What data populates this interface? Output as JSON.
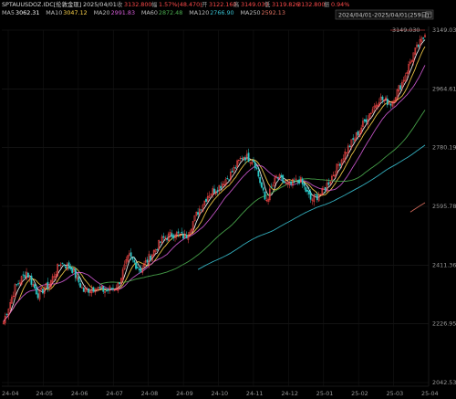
{
  "header": {
    "symbol": "SPTAUUSDOZ.IDC[伦敦金现]",
    "date": "2025/04/01",
    "close_label": "收",
    "close": "3132.800",
    "change_label": "幅",
    "change": "1.57%(48.470)",
    "open_label": "开",
    "open": "3122.160",
    "high_label": "高",
    "high": "3149.030",
    "low_label": "低",
    "low": "3119.826",
    "last": "3132.800",
    "amp_label": "振",
    "amp": "0.94%",
    "range": "2024/04/01-2025/04/01(259日)",
    "range_icon": "calendar-icon"
  },
  "ma_legend": [
    {
      "label": "MA5",
      "value": "3062.31",
      "color": "#ffffff"
    },
    {
      "label": "MA10",
      "value": "3047.12",
      "color": "#ffd54a"
    },
    {
      "label": "MA20",
      "value": "2991.83",
      "color": "#d35bd6"
    },
    {
      "label": "MA60",
      "value": "2872.48",
      "color": "#4caf50"
    },
    {
      "label": "MA120",
      "value": "2766.90",
      "color": "#39c1d1"
    },
    {
      "label": "MA250",
      "value": "2592.13",
      "color": "#e07060"
    }
  ],
  "chart_data": {
    "type": "candlestick",
    "y_ticks": [
      "3149.030",
      "2964.614",
      "2780.198",
      "2595.782",
      "2411.366",
      "2226.950",
      "2042.534"
    ],
    "ylim": [
      2042.534,
      3149.03
    ],
    "x_ticks": [
      "24-04",
      "24-05",
      "24-06",
      "24-07",
      "24-08",
      "24-09",
      "24-10",
      "24-11",
      "24-12",
      "25-01",
      "25-02",
      "25-03",
      "25-04"
    ],
    "high_marker": "3149.030",
    "up_color": "#ff4a4a",
    "down_color": "#29c7c7",
    "anchors": [
      [
        "24-04",
        2235
      ],
      [
        "24-04",
        2340
      ],
      [
        "24-04",
        2390
      ],
      [
        "24-05",
        2320
      ],
      [
        "24-05",
        2350
      ],
      [
        "24-05",
        2420
      ],
      [
        "24-05",
        2400
      ],
      [
        "24-06",
        2330
      ],
      [
        "24-06",
        2340
      ],
      [
        "24-06",
        2330
      ],
      [
        "24-07",
        2345
      ],
      [
        "24-07",
        2440
      ],
      [
        "24-07",
        2395
      ],
      [
        "24-08",
        2445
      ],
      [
        "24-08",
        2495
      ],
      [
        "24-08",
        2510
      ],
      [
        "24-09",
        2500
      ],
      [
        "24-09",
        2575
      ],
      [
        "24-09",
        2635
      ],
      [
        "24-10",
        2660
      ],
      [
        "24-10",
        2700
      ],
      [
        "24-10",
        2755
      ],
      [
        "24-11",
        2740
      ],
      [
        "24-11",
        2610
      ],
      [
        "24-11",
        2690
      ],
      [
        "24-12",
        2660
      ],
      [
        "24-12",
        2680
      ],
      [
        "24-12",
        2615
      ],
      [
        "25-01",
        2640
      ],
      [
        "25-01",
        2700
      ],
      [
        "25-01",
        2765
      ],
      [
        "25-02",
        2820
      ],
      [
        "25-02",
        2880
      ],
      [
        "25-02",
        2935
      ],
      [
        "25-03",
        2920
      ],
      [
        "25-03",
        2985
      ],
      [
        "25-03",
        3075
      ],
      [
        "25-04",
        3132.8
      ]
    ]
  }
}
